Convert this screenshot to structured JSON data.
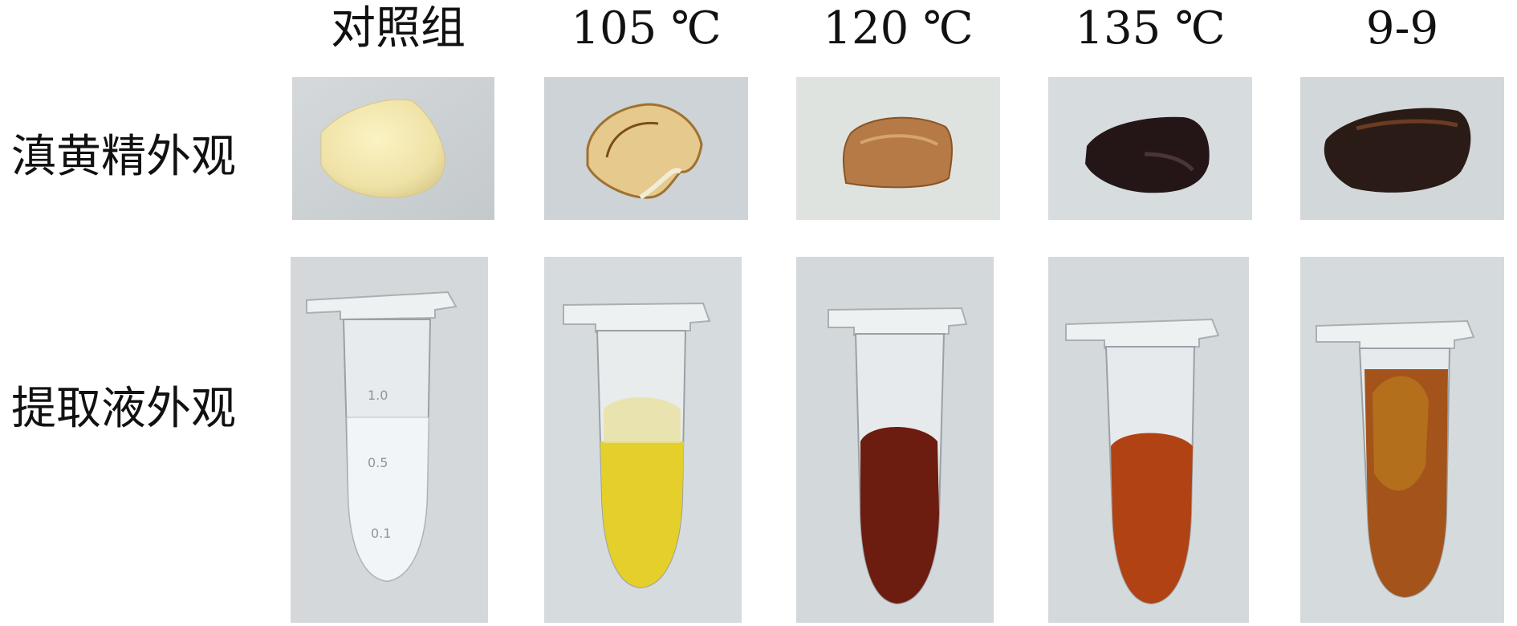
{
  "column_headers": [
    "对照组",
    "105 ℃",
    "120 ℃",
    "135 ℃",
    "9-9"
  ],
  "row_labels": {
    "appearance": "滇黄精外观",
    "extract": "提取液外观"
  },
  "samples": [
    {
      "solid_color": "#efe2a6",
      "liquid_color": "#eef2f4"
    },
    {
      "solid_color": "#d8b46a",
      "liquid_color": "#e5cf2a"
    },
    {
      "solid_color": "#b57a45",
      "liquid_color": "#6d1c10"
    },
    {
      "solid_color": "#241617",
      "liquid_color": "#b04214"
    },
    {
      "solid_color": "#2a1b16",
      "liquid_color": "#a4541a"
    }
  ],
  "tube_graduations": [
    "1.0",
    "0.5",
    "0.1"
  ]
}
